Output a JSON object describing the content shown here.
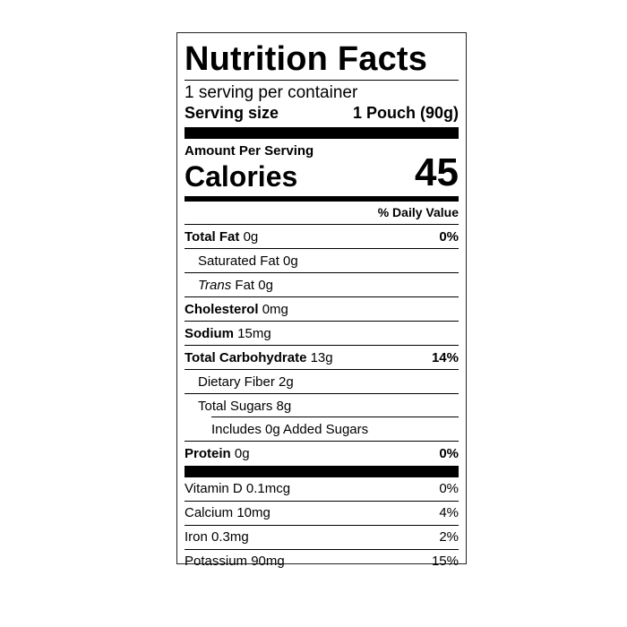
{
  "title": "Nutrition Facts",
  "servings_per_container": "1 serving per container",
  "serving_size": {
    "label": "Serving size",
    "value": "1 Pouch (90g)"
  },
  "amount_per_serving": "Amount Per Serving",
  "calories": {
    "label": "Calories",
    "value": "45"
  },
  "daily_value_header": "% Daily Value",
  "nutrients": [
    {
      "name": "Total Fat",
      "amount": "0g",
      "dv": "0%"
    },
    {
      "name": "Saturated Fat 0g"
    },
    {
      "name": "Trans",
      "amount": "Fat 0g"
    },
    {
      "name": "Cholesterol",
      "amount": "0mg"
    },
    {
      "name": "Sodium",
      "amount": "15mg"
    },
    {
      "name": "Total Carbohydrate",
      "amount": "13g",
      "dv": "14%"
    },
    {
      "name": "Dietary Fiber 2g"
    },
    {
      "name": "Total Sugars 8g"
    },
    {
      "name": "Includes 0g Added Sugars"
    },
    {
      "name": "Protein",
      "amount": "0g",
      "dv": "0%"
    }
  ],
  "vitamins": [
    {
      "name": "Vitamin D 0.1mcg",
      "dv": "0%"
    },
    {
      "name": "Calcium 10mg",
      "dv": "4%"
    },
    {
      "name": "Iron 0.3mg",
      "dv": "2%"
    },
    {
      "name": "Potassium 90mg",
      "dv": "15%"
    }
  ]
}
